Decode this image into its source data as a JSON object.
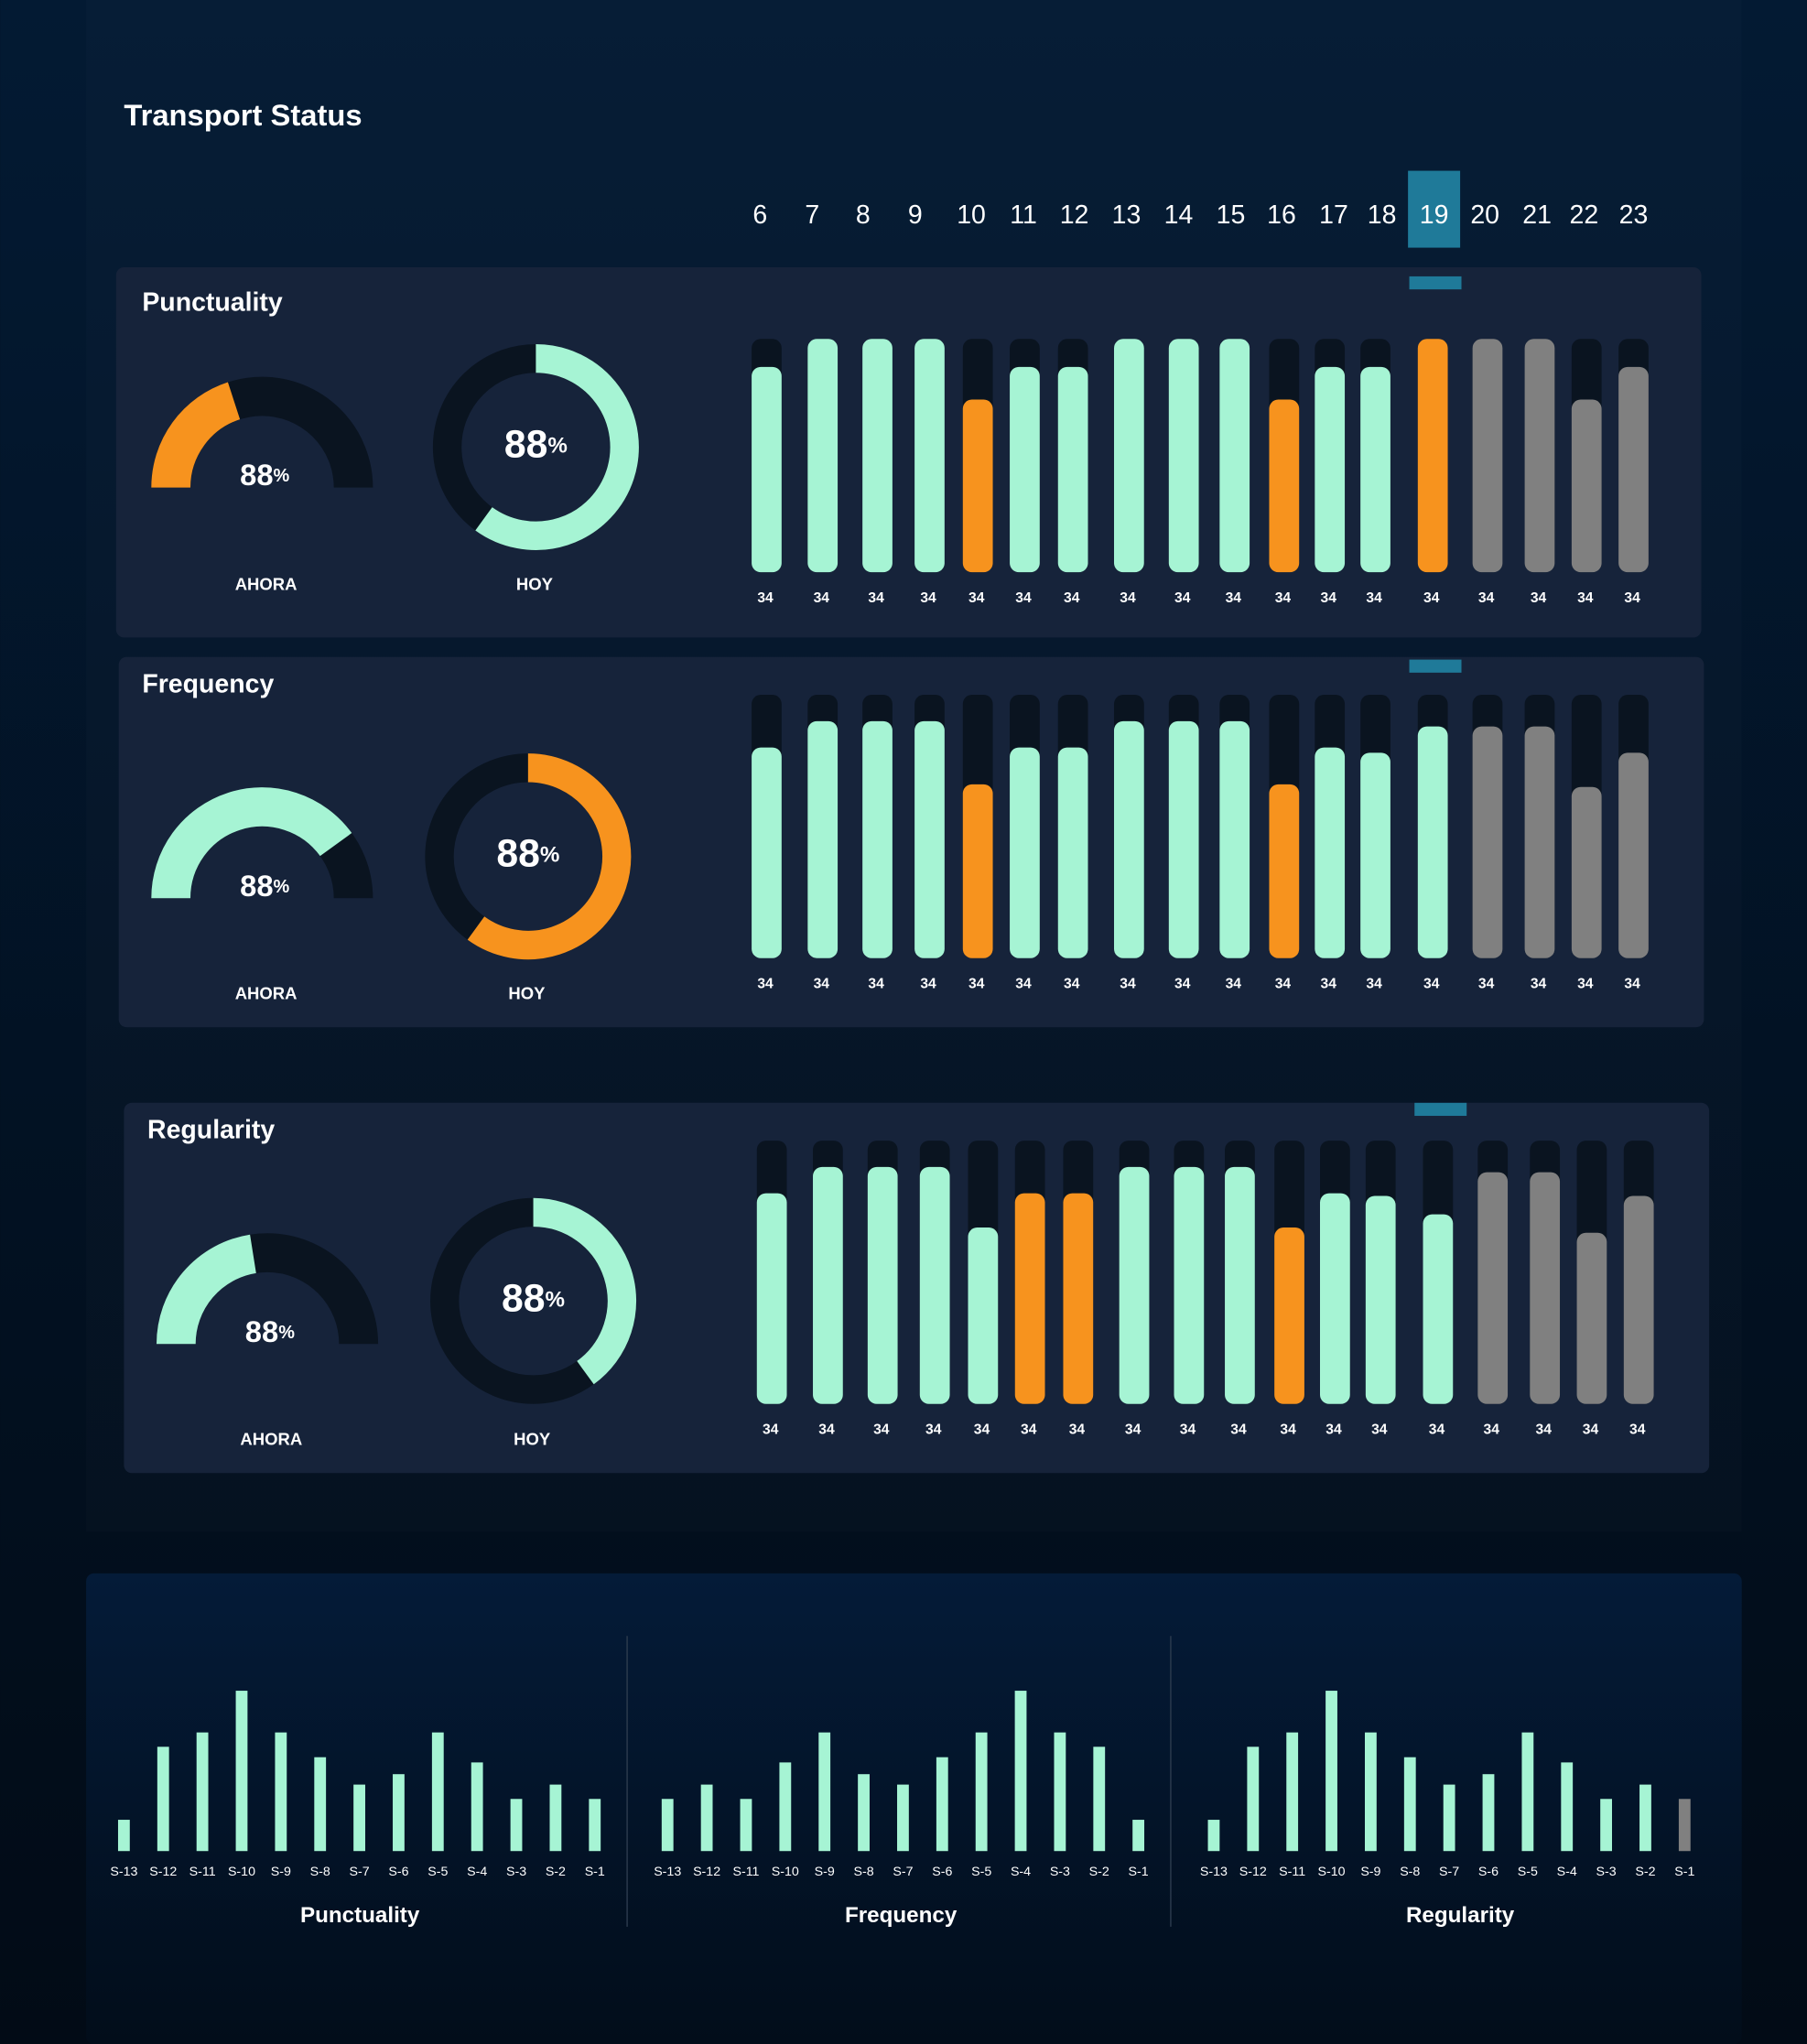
{
  "title": "Transport Status",
  "hours": [
    6,
    7,
    8,
    9,
    10,
    11,
    12,
    13,
    14,
    15,
    16,
    17,
    18,
    19,
    20,
    21,
    22,
    23
  ],
  "selected_hour": 19,
  "panels": [
    {
      "title": "Punctuality",
      "ahora": {
        "label": "AHORA",
        "value": 88,
        "unit": "%",
        "fill": 40,
        "color": "#f7931e"
      },
      "hoy": {
        "label": "HOY",
        "value": 88,
        "unit": "%",
        "fill": 60,
        "color": "#a6f4d4"
      },
      "bars": {
        "ylim": [
          0,
          100
        ],
        "values": [
          88,
          100,
          100,
          100,
          74,
          88,
          88,
          100,
          100,
          100,
          74,
          88,
          88,
          100,
          100,
          100,
          74,
          88
        ],
        "colors": [
          "#a6f4d4",
          "#a6f4d4",
          "#a6f4d4",
          "#a6f4d4",
          "#f7931e",
          "#a6f4d4",
          "#a6f4d4",
          "#a6f4d4",
          "#a6f4d4",
          "#a6f4d4",
          "#f7931e",
          "#a6f4d4",
          "#a6f4d4",
          "#f7931e",
          "#808080",
          "#808080",
          "#808080",
          "#808080"
        ],
        "counts": [
          34,
          34,
          34,
          34,
          34,
          34,
          34,
          34,
          34,
          34,
          34,
          34,
          34,
          34,
          34,
          34,
          34,
          34
        ]
      }
    },
    {
      "title": "Frequency",
      "ahora": {
        "label": "AHORA",
        "value": 88,
        "unit": "%",
        "fill": 80,
        "color": "#a6f4d4"
      },
      "hoy": {
        "label": "HOY",
        "value": 88,
        "unit": "%",
        "fill": 60,
        "color": "#f7931e"
      },
      "bars": {
        "ylim": [
          0,
          100
        ],
        "values": [
          80,
          90,
          90,
          90,
          66,
          80,
          80,
          90,
          90,
          90,
          66,
          80,
          78,
          88,
          88,
          88,
          65,
          78
        ],
        "colors": [
          "#a6f4d4",
          "#a6f4d4",
          "#a6f4d4",
          "#a6f4d4",
          "#f7931e",
          "#a6f4d4",
          "#a6f4d4",
          "#a6f4d4",
          "#a6f4d4",
          "#a6f4d4",
          "#f7931e",
          "#a6f4d4",
          "#a6f4d4",
          "#a6f4d4",
          "#808080",
          "#808080",
          "#808080",
          "#808080"
        ],
        "counts": [
          34,
          34,
          34,
          34,
          34,
          34,
          34,
          34,
          34,
          34,
          34,
          34,
          34,
          34,
          34,
          34,
          34,
          34
        ]
      }
    },
    {
      "title": "Regularity",
      "ahora": {
        "label": "AHORA",
        "value": 88,
        "unit": "%",
        "fill": 45,
        "color": "#a6f4d4"
      },
      "hoy": {
        "label": "HOY",
        "value": 88,
        "unit": "%",
        "fill": 40,
        "color": "#a6f4d4"
      },
      "bars": {
        "ylim": [
          0,
          100
        ],
        "values": [
          80,
          90,
          90,
          90,
          67,
          80,
          80,
          90,
          90,
          90,
          67,
          80,
          79,
          72,
          88,
          88,
          65,
          79
        ],
        "colors": [
          "#a6f4d4",
          "#a6f4d4",
          "#a6f4d4",
          "#a6f4d4",
          "#a6f4d4",
          "#f7931e",
          "#f7931e",
          "#a6f4d4",
          "#a6f4d4",
          "#a6f4d4",
          "#f7931e",
          "#a6f4d4",
          "#a6f4d4",
          "#a6f4d4",
          "#808080",
          "#808080",
          "#808080",
          "#808080"
        ],
        "counts": [
          34,
          34,
          34,
          34,
          34,
          34,
          34,
          34,
          34,
          34,
          34,
          34,
          34,
          34,
          34,
          34,
          34,
          34
        ]
      }
    }
  ],
  "history": [
    {
      "title": "Punctuality",
      "ylim": [
        0,
        130
      ],
      "categories": [
        "S-13",
        "S-12",
        "S-11",
        "S-10",
        "S-9",
        "S-8",
        "S-7",
        "S-6",
        "S-5",
        "S-4",
        "S-3",
        "S-2",
        "S-1"
      ],
      "values": [
        24,
        80,
        91,
        123,
        91,
        72,
        51,
        59,
        91,
        68,
        40,
        51,
        40
      ],
      "colors": [
        "#a6f4d4",
        "#a6f4d4",
        "#a6f4d4",
        "#a6f4d4",
        "#a6f4d4",
        "#a6f4d4",
        "#a6f4d4",
        "#a6f4d4",
        "#a6f4d4",
        "#a6f4d4",
        "#a6f4d4",
        "#a6f4d4",
        "#a6f4d4"
      ]
    },
    {
      "title": "Frequency",
      "ylim": [
        0,
        130
      ],
      "categories": [
        "S-13",
        "S-12",
        "S-11",
        "S-10",
        "S-9",
        "S-8",
        "S-7",
        "S-6",
        "S-5",
        "S-4",
        "S-3",
        "S-2",
        "S-1"
      ],
      "values": [
        40,
        51,
        40,
        68,
        91,
        59,
        51,
        72,
        91,
        123,
        91,
        80,
        24
      ],
      "colors": [
        "#a6f4d4",
        "#a6f4d4",
        "#a6f4d4",
        "#a6f4d4",
        "#a6f4d4",
        "#a6f4d4",
        "#a6f4d4",
        "#a6f4d4",
        "#a6f4d4",
        "#a6f4d4",
        "#a6f4d4",
        "#a6f4d4",
        "#a6f4d4"
      ]
    },
    {
      "title": "Regularity",
      "ylim": [
        0,
        130
      ],
      "categories": [
        "S-13",
        "S-12",
        "S-11",
        "S-10",
        "S-9",
        "S-8",
        "S-7",
        "S-6",
        "S-5",
        "S-4",
        "S-3",
        "S-2",
        "S-1"
      ],
      "values": [
        24,
        80,
        91,
        123,
        91,
        72,
        51,
        59,
        91,
        68,
        40,
        51,
        40
      ],
      "colors": [
        "#a6f4d4",
        "#a6f4d4",
        "#a6f4d4",
        "#a6f4d4",
        "#a6f4d4",
        "#a6f4d4",
        "#a6f4d4",
        "#a6f4d4",
        "#a6f4d4",
        "#a6f4d4",
        "#a6f4d4",
        "#a6f4d4",
        "#808080"
      ]
    }
  ]
}
